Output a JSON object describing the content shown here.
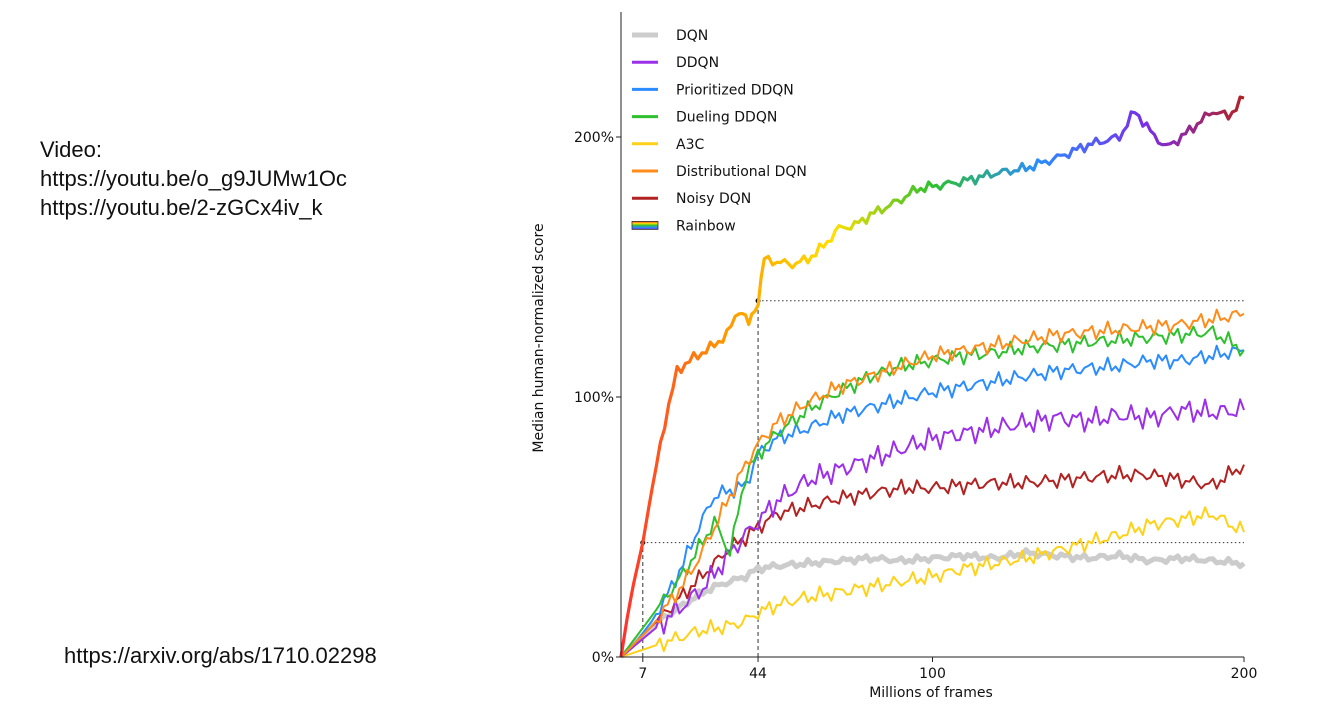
{
  "notes": {
    "video_heading": "Video:",
    "video_link_1": "https://youtu.be/o_g9JUMw1Oc",
    "video_link_2": "https://youtu.be/2-zGCx4iv_k",
    "paper_link": "https://arxiv.org/abs/1710.02298"
  },
  "chart_data": {
    "type": "line",
    "xlabel": "Millions of frames",
    "ylabel": "Median human-normalized score",
    "xlim": [
      0,
      200
    ],
    "ylim": [
      0,
      245
    ],
    "x_ticks": [
      7,
      44,
      100,
      200
    ],
    "x_tick_labels": [
      "7",
      "44",
      "100",
      "200"
    ],
    "y_ticks": [
      0,
      100,
      200
    ],
    "y_tick_labels": [
      "0%",
      "100%",
      "200%"
    ],
    "legend_position": "top-left",
    "reference_lines": [
      {
        "type": "horizontal",
        "y": 44,
        "from_x": 7,
        "to_x": 200
      },
      {
        "type": "vertical",
        "x": 7,
        "to_y": 44
      },
      {
        "type": "horizontal",
        "y": 137,
        "from_x": 44,
        "to_x": 200
      },
      {
        "type": "vertical",
        "x": 44,
        "to_y": 137
      }
    ],
    "series": [
      {
        "name": "DQN",
        "color": "#cccccc",
        "x": [
          0,
          5,
          10,
          15,
          20,
          25,
          30,
          35,
          40,
          44,
          50,
          60,
          70,
          80,
          90,
          100,
          110,
          120,
          130,
          140,
          150,
          160,
          170,
          180,
          190,
          200
        ],
        "y": [
          0,
          6,
          12,
          16,
          20,
          24,
          27,
          29,
          31,
          34,
          35,
          36,
          37,
          38,
          37,
          38,
          39,
          38,
          40,
          39,
          38,
          39,
          37,
          38,
          37,
          36
        ]
      },
      {
        "name": "DDQN",
        "color": "#9b30e8",
        "x": [
          0,
          5,
          10,
          15,
          20,
          25,
          30,
          35,
          40,
          44,
          50,
          60,
          70,
          80,
          90,
          100,
          110,
          120,
          130,
          140,
          150,
          160,
          170,
          180,
          190,
          200
        ],
        "y": [
          0,
          5,
          10,
          15,
          20,
          25,
          32,
          40,
          47,
          52,
          60,
          68,
          72,
          76,
          80,
          84,
          86,
          88,
          90,
          92,
          91,
          93,
          92,
          95,
          94,
          95
        ]
      },
      {
        "name": "Prioritized DDQN",
        "color": "#2b8cff",
        "x": [
          0,
          5,
          10,
          15,
          20,
          25,
          30,
          35,
          40,
          44,
          50,
          60,
          70,
          80,
          90,
          100,
          110,
          120,
          130,
          140,
          150,
          160,
          170,
          180,
          190,
          200
        ],
        "y": [
          0,
          6,
          14,
          24,
          36,
          50,
          62,
          64,
          66,
          78,
          84,
          88,
          93,
          96,
          99,
          102,
          104,
          106,
          108,
          110,
          111,
          112,
          114,
          114,
          116,
          118
        ]
      },
      {
        "name": "Dueling DDQN",
        "color": "#2ec02e",
        "x": [
          0,
          5,
          10,
          15,
          20,
          25,
          30,
          35,
          40,
          44,
          50,
          60,
          70,
          80,
          90,
          100,
          110,
          120,
          130,
          140,
          150,
          160,
          170,
          180,
          190,
          200
        ],
        "y": [
          0,
          8,
          16,
          24,
          32,
          42,
          52,
          40,
          70,
          78,
          86,
          95,
          102,
          108,
          112,
          114,
          116,
          117,
          119,
          120,
          121,
          122,
          123,
          124,
          125,
          118
        ]
      },
      {
        "name": "A3C",
        "color": "#ffd21a",
        "x": [
          0,
          5,
          10,
          15,
          20,
          25,
          30,
          35,
          40,
          44,
          50,
          60,
          70,
          80,
          90,
          100,
          110,
          120,
          130,
          140,
          150,
          160,
          170,
          180,
          190,
          200
        ],
        "y": [
          0,
          2,
          4,
          6,
          8,
          10,
          11,
          12,
          14,
          17,
          20,
          23,
          25,
          27,
          29,
          31,
          34,
          36,
          38,
          41,
          44,
          47,
          51,
          53,
          55,
          48
        ]
      },
      {
        "name": "Distributional DQN",
        "color": "#ff8c1a",
        "x": [
          0,
          5,
          10,
          15,
          20,
          25,
          30,
          35,
          40,
          44,
          50,
          60,
          70,
          80,
          90,
          100,
          110,
          120,
          130,
          140,
          150,
          160,
          170,
          180,
          190,
          200
        ],
        "y": [
          0,
          6,
          12,
          20,
          28,
          38,
          50,
          62,
          74,
          82,
          90,
          98,
          104,
          108,
          112,
          116,
          118,
          120,
          122,
          124,
          125,
          126,
          127,
          128,
          130,
          132
        ]
      },
      {
        "name": "Noisy DQN",
        "color": "#b22222",
        "x": [
          0,
          5,
          10,
          15,
          20,
          25,
          30,
          35,
          40,
          44,
          50,
          60,
          70,
          80,
          90,
          100,
          110,
          120,
          130,
          140,
          150,
          160,
          170,
          180,
          190,
          200
        ],
        "y": [
          0,
          6,
          12,
          18,
          24,
          30,
          36,
          42,
          46,
          50,
          55,
          58,
          61,
          63,
          65,
          65,
          66,
          67,
          67,
          68,
          69,
          70,
          70,
          68,
          66,
          74
        ]
      },
      {
        "name": "Rainbow",
        "color": "rainbow",
        "x": [
          0,
          2,
          4,
          7,
          10,
          14,
          18,
          22,
          26,
          30,
          34,
          38,
          41,
          44,
          46,
          50,
          55,
          60,
          65,
          70,
          75,
          80,
          85,
          90,
          95,
          100,
          110,
          120,
          130,
          140,
          150,
          160,
          165,
          170,
          175,
          180,
          185,
          190,
          195,
          200
        ],
        "y": [
          0,
          15,
          28,
          44,
          65,
          90,
          110,
          114,
          117,
          120,
          124,
          134,
          128,
          137,
          153,
          152,
          151,
          153,
          158,
          165,
          166,
          170,
          173,
          176,
          180,
          181,
          183,
          186,
          188,
          192,
          197,
          200,
          210,
          202,
          196,
          200,
          205,
          210,
          208,
          215
        ]
      }
    ]
  }
}
